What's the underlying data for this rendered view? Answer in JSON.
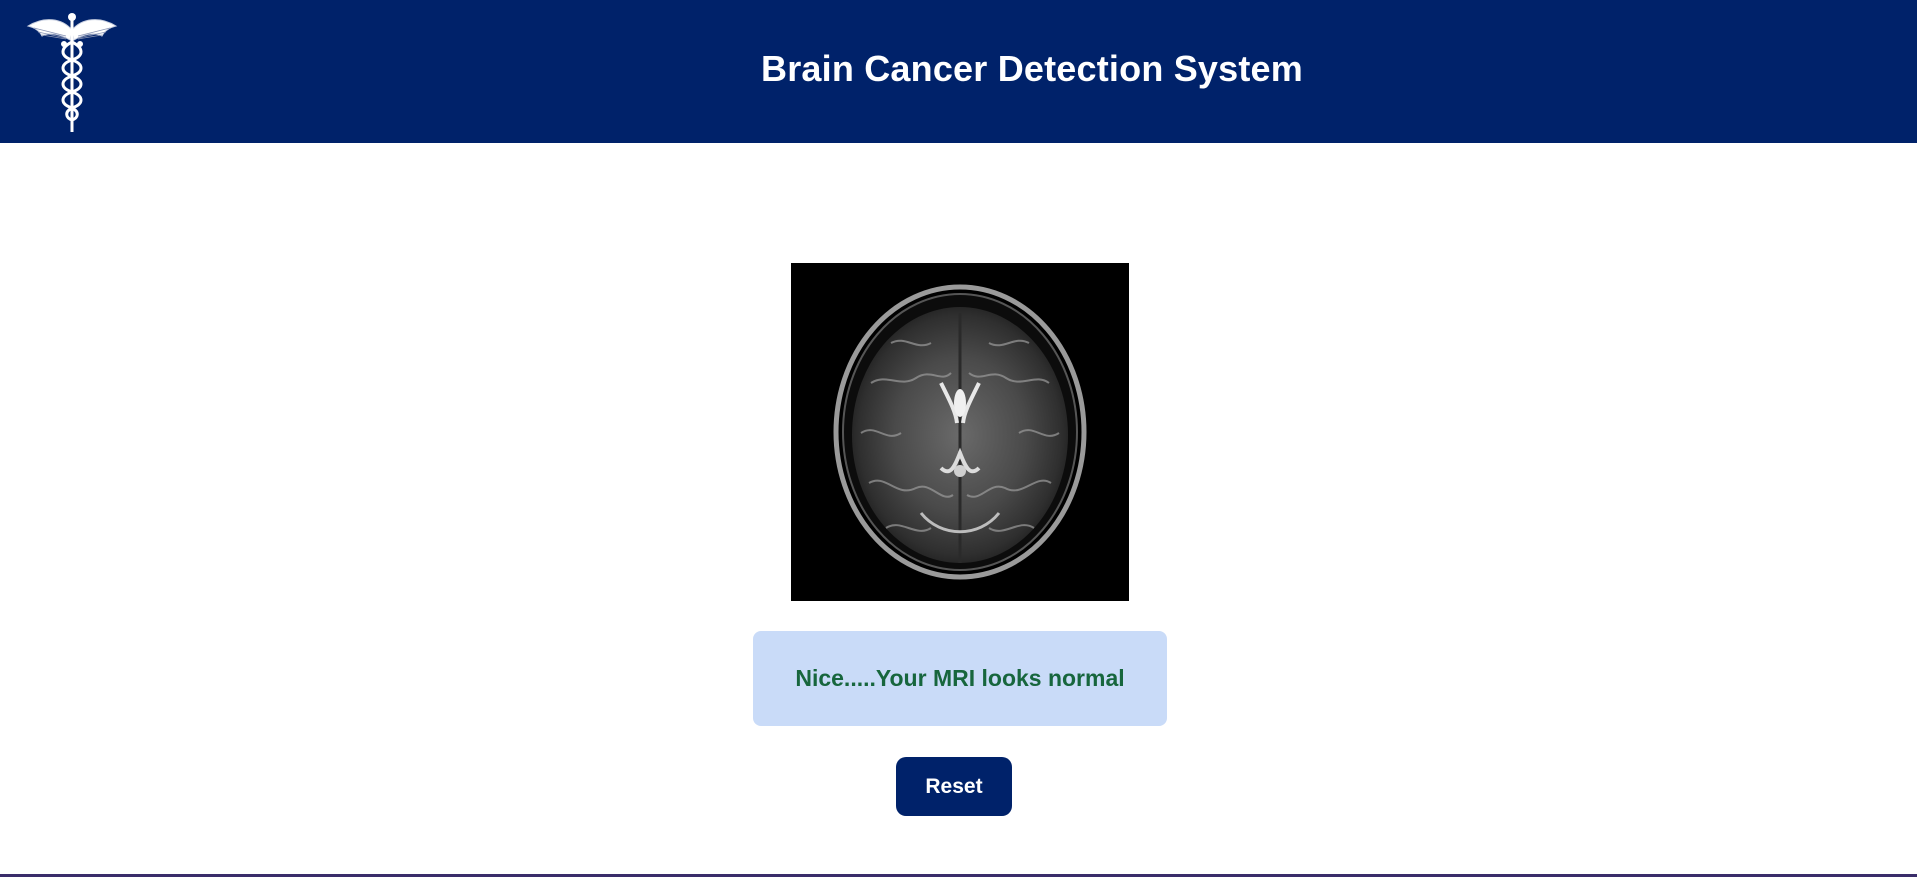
{
  "header": {
    "title": "Brain Cancer Detection System",
    "logo_icon": "caduceus-icon",
    "background": "#00226a"
  },
  "main": {
    "result_message": "Nice.....Your MRI looks normal",
    "result_text_color": "#17663d",
    "result_background": "#c9dbf8",
    "reset_label": "Reset",
    "image_icon": "mri-scan-image"
  }
}
